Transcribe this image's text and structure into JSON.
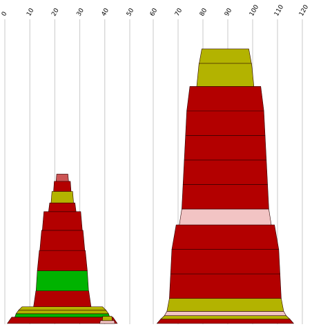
{
  "chart_data": {
    "type": "bar",
    "orientation": "vertical",
    "style": "stacked centered segments (funnel-like stacks)",
    "grid": true,
    "legend": "none",
    "panels": [
      {
        "name": "left-panel",
        "x_ticks": [
          "0",
          "10",
          "20",
          "30",
          "40",
          "50"
        ],
        "x_range": [
          0,
          50
        ],
        "stacks": [
          {
            "center": 23,
            "segments": [
              {
                "width": 44,
                "height": 2.2,
                "color": "#b30000"
              },
              {
                "width": 38,
                "height": 1.2,
                "color": "#00b300"
              },
              {
                "width": 37,
                "height": 1.2,
                "color": "#b3b300"
              },
              {
                "width": 35,
                "height": 1.2,
                "color": "#b3b300"
              },
              {
                "width": 23,
                "height": 5.5,
                "color": "#b30000"
              },
              {
                "width": 21,
                "height": 7.0,
                "color": "#00b300"
              },
              {
                "width": 20,
                "height": 7.0,
                "color": "#b30000"
              },
              {
                "width": 18,
                "height": 7.0,
                "color": "#b30000"
              },
              {
                "width": 16,
                "height": 6.5,
                "color": "#b30000"
              },
              {
                "width": 11,
                "height": 3.0,
                "color": "#b30000"
              },
              {
                "width": 9,
                "height": 4.0,
                "color": "#b3b300"
              },
              {
                "width": 7,
                "height": 3.5,
                "color": "#b30000"
              },
              {
                "width": 5,
                "height": 2.5,
                "color": "#cc5555"
              }
            ]
          },
          {
            "center": 41,
            "segments": [
              {
                "width": 6,
                "height": 1.0,
                "color": "#f2c4c4"
              },
              {
                "width": 4,
                "height": 1.5,
                "color": "#b3b300"
              }
            ]
          }
        ]
      },
      {
        "name": "right-panel",
        "x_ticks": [
          "60",
          "70",
          "80",
          "90",
          "100",
          "110",
          "120"
        ],
        "x_range": [
          60,
          120
        ],
        "stacks": [
          {
            "center": 89,
            "segments": [
              {
                "width": 55,
                "height": 1.5,
                "color": "#b30000"
              },
              {
                "width": 52,
                "height": 1.2,
                "color": "#b3b300"
              },
              {
                "width": 49,
                "height": 1.5,
                "color": "#f2c4c4"
              },
              {
                "width": 47,
                "height": 4.5,
                "color": "#b3b300"
              },
              {
                "width": 45,
                "height": 8.5,
                "color": "#b30000"
              },
              {
                "width": 44,
                "height": 8.5,
                "color": "#b30000"
              },
              {
                "width": 43,
                "height": 8.5,
                "color": "#b30000"
              },
              {
                "width": 37,
                "height": 5.5,
                "color": "#f2c4c4"
              },
              {
                "width": 35,
                "height": 8.5,
                "color": "#b30000"
              },
              {
                "width": 34,
                "height": 8.5,
                "color": "#b30000"
              },
              {
                "width": 33,
                "height": 8.5,
                "color": "#b30000"
              },
              {
                "width": 32,
                "height": 8.5,
                "color": "#b30000"
              },
              {
                "width": 31,
                "height": 8.5,
                "color": "#b30000"
              },
              {
                "width": 23,
                "height": 8.0,
                "color": "#b3b300"
              },
              {
                "width": 21,
                "height": 5.0,
                "color": "#b3b300"
              }
            ]
          }
        ]
      }
    ],
    "ylim": [
      0,
      105
    ]
  }
}
